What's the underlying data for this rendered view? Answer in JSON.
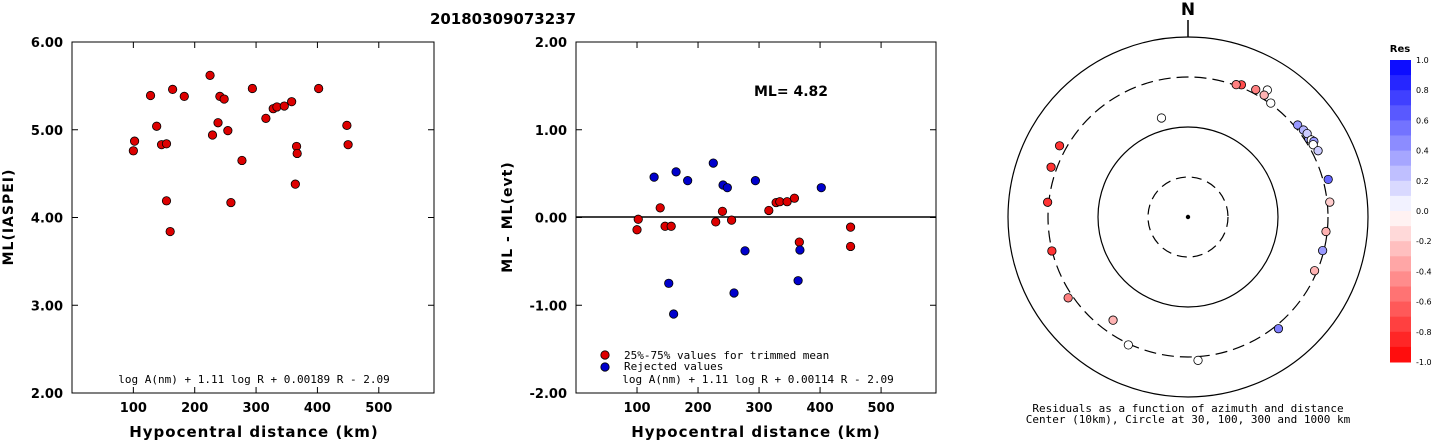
{
  "title": "20180309073237",
  "colors": {
    "trimmed": "#dd0000",
    "rejected": "#0000cc",
    "axis": "#000000"
  },
  "chart_data": [
    {
      "type": "scatter",
      "xlabel": "Hypocentral distance (km)",
      "ylabel": "ML(IASPEI)",
      "xlim": [
        0,
        590
      ],
      "ylim": [
        2.0,
        6.0
      ],
      "xticks": [
        "100",
        "200",
        "300",
        "400",
        "500"
      ],
      "yticks": [
        "2.00",
        "3.00",
        "4.00",
        "5.00",
        "6.00"
      ],
      "formula": "log A(nm) + 1.11 log R + 0.00189 R - 2.09",
      "points": [
        [
          100,
          4.76
        ],
        [
          102,
          4.87
        ],
        [
          128,
          5.39
        ],
        [
          138,
          5.04
        ],
        [
          146,
          4.83
        ],
        [
          154,
          4.84
        ],
        [
          154,
          4.19
        ],
        [
          160,
          3.84
        ],
        [
          164,
          5.46
        ],
        [
          183,
          5.38
        ],
        [
          225,
          5.62
        ],
        [
          229,
          4.94
        ],
        [
          238,
          5.08
        ],
        [
          241,
          5.38
        ],
        [
          248,
          5.35
        ],
        [
          254,
          4.99
        ],
        [
          259,
          4.17
        ],
        [
          277,
          4.65
        ],
        [
          294,
          5.47
        ],
        [
          316,
          5.13
        ],
        [
          328,
          5.24
        ],
        [
          334,
          5.26
        ],
        [
          346,
          5.27
        ],
        [
          358,
          5.32
        ],
        [
          364,
          4.38
        ],
        [
          366,
          4.81
        ],
        [
          367,
          4.73
        ],
        [
          402,
          5.47
        ],
        [
          448,
          5.05
        ],
        [
          450,
          4.83
        ]
      ]
    },
    {
      "type": "scatter",
      "xlabel": "Hypocentral distance (km)",
      "ylabel": "ML - ML(evt)",
      "xlim": [
        0,
        590
      ],
      "ylim": [
        -2.0,
        2.0
      ],
      "xticks": [
        "100",
        "200",
        "300",
        "400",
        "500"
      ],
      "yticks": [
        "-2.00",
        "-1.00",
        "0.00",
        "1.00",
        "2.00"
      ],
      "annotation": "ML= 4.82",
      "formula": "log A(nm) + 1.11 log R + 0.00114 R - 2.09",
      "legend": [
        "25%-75% values for trimmed mean",
        "Rejected values"
      ],
      "series": [
        {
          "name": "25%-75% values for trimmed mean",
          "points": [
            [
              100,
              -0.14
            ],
            [
              102,
              -0.02
            ],
            [
              138,
              0.11
            ],
            [
              146,
              -0.1
            ],
            [
              156,
              -0.1
            ],
            [
              229,
              -0.05
            ],
            [
              240,
              0.07
            ],
            [
              255,
              -0.03
            ],
            [
              316,
              0.08
            ],
            [
              328,
              0.17
            ],
            [
              334,
              0.18
            ],
            [
              346,
              0.18
            ],
            [
              358,
              0.22
            ],
            [
              366,
              -0.28
            ],
            [
              450,
              -0.11
            ],
            [
              450,
              -0.33
            ]
          ]
        },
        {
          "name": "Rejected values",
          "points": [
            [
              128,
              0.46
            ],
            [
              152,
              -0.75
            ],
            [
              160,
              -1.1
            ],
            [
              164,
              0.52
            ],
            [
              183,
              0.42
            ],
            [
              225,
              0.62
            ],
            [
              241,
              0.37
            ],
            [
              248,
              0.34
            ],
            [
              259,
              -0.86
            ],
            [
              277,
              -0.38
            ],
            [
              294,
              0.42
            ],
            [
              364,
              -0.72
            ],
            [
              367,
              -0.37
            ],
            [
              402,
              0.34
            ]
          ]
        }
      ]
    },
    {
      "type": "scatter",
      "subtype": "polar",
      "north_label": "N",
      "caption_line1": "Residuals as a function of azimuth and distance",
      "caption_line2": "Center (10km), Circle at 30, 100, 300 and 1000 km",
      "colorbar_title": "Res",
      "colorbar_ticks": [
        "1.0",
        "0.8",
        "0.6",
        "0.4",
        "0.2",
        "0.0",
        "-0.2",
        "-0.4",
        "-0.6",
        "-0.8",
        "-1.0"
      ],
      "rings_km": [
        30,
        100,
        300,
        1000
      ],
      "stations": [
        {
          "az": 32,
          "km": 470,
          "res": 0.0
        },
        {
          "az": 22,
          "km": 345,
          "res": -0.7
        },
        {
          "az": 28,
          "km": 375,
          "res": -0.5
        },
        {
          "az": 32,
          "km": 365,
          "res": -0.3
        },
        {
          "az": 20,
          "km": 315,
          "res": -0.5
        },
        {
          "az": 36,
          "km": 315,
          "res": 0.0
        },
        {
          "az": 50,
          "km": 355,
          "res": 0.4
        },
        {
          "az": 53,
          "km": 380,
          "res": 0.3
        },
        {
          "az": 57,
          "km": 370,
          "res": 0.4
        },
        {
          "az": 55,
          "km": 395,
          "res": 0.2
        },
        {
          "az": 58,
          "km": 395,
          "res": 0.0
        },
        {
          "az": 59,
          "km": 420,
          "res": 0.4
        },
        {
          "az": 60,
          "km": 380,
          "res": 0.0
        },
        {
          "az": 63,
          "km": 405,
          "res": 0.2
        },
        {
          "az": 75,
          "km": 390,
          "res": 0.6
        },
        {
          "az": 84,
          "km": 345,
          "res": -0.2
        },
        {
          "az": 96,
          "km": 295,
          "res": -0.3
        },
        {
          "az": 104,
          "km": 295,
          "res": 0.4
        },
        {
          "az": 113,
          "km": 290,
          "res": -0.3
        },
        {
          "az": 141,
          "km": 365,
          "res": 0.5
        },
        {
          "az": 176,
          "km": 365,
          "res": 0.0
        },
        {
          "az": 205,
          "km": 320,
          "res": 0.0
        },
        {
          "az": 216,
          "km": 250,
          "res": -0.3
        },
        {
          "az": 236,
          "km": 380,
          "res": -0.5
        },
        {
          "az": 256,
          "km": 305,
          "res": -0.8
        },
        {
          "az": 276,
          "km": 320,
          "res": -0.8
        },
        {
          "az": 290,
          "km": 400,
          "res": -0.8
        },
        {
          "az": 299,
          "km": 420,
          "res": -0.8
        },
        {
          "az": 345,
          "km": 150,
          "res": 0.0
        }
      ]
    }
  ]
}
